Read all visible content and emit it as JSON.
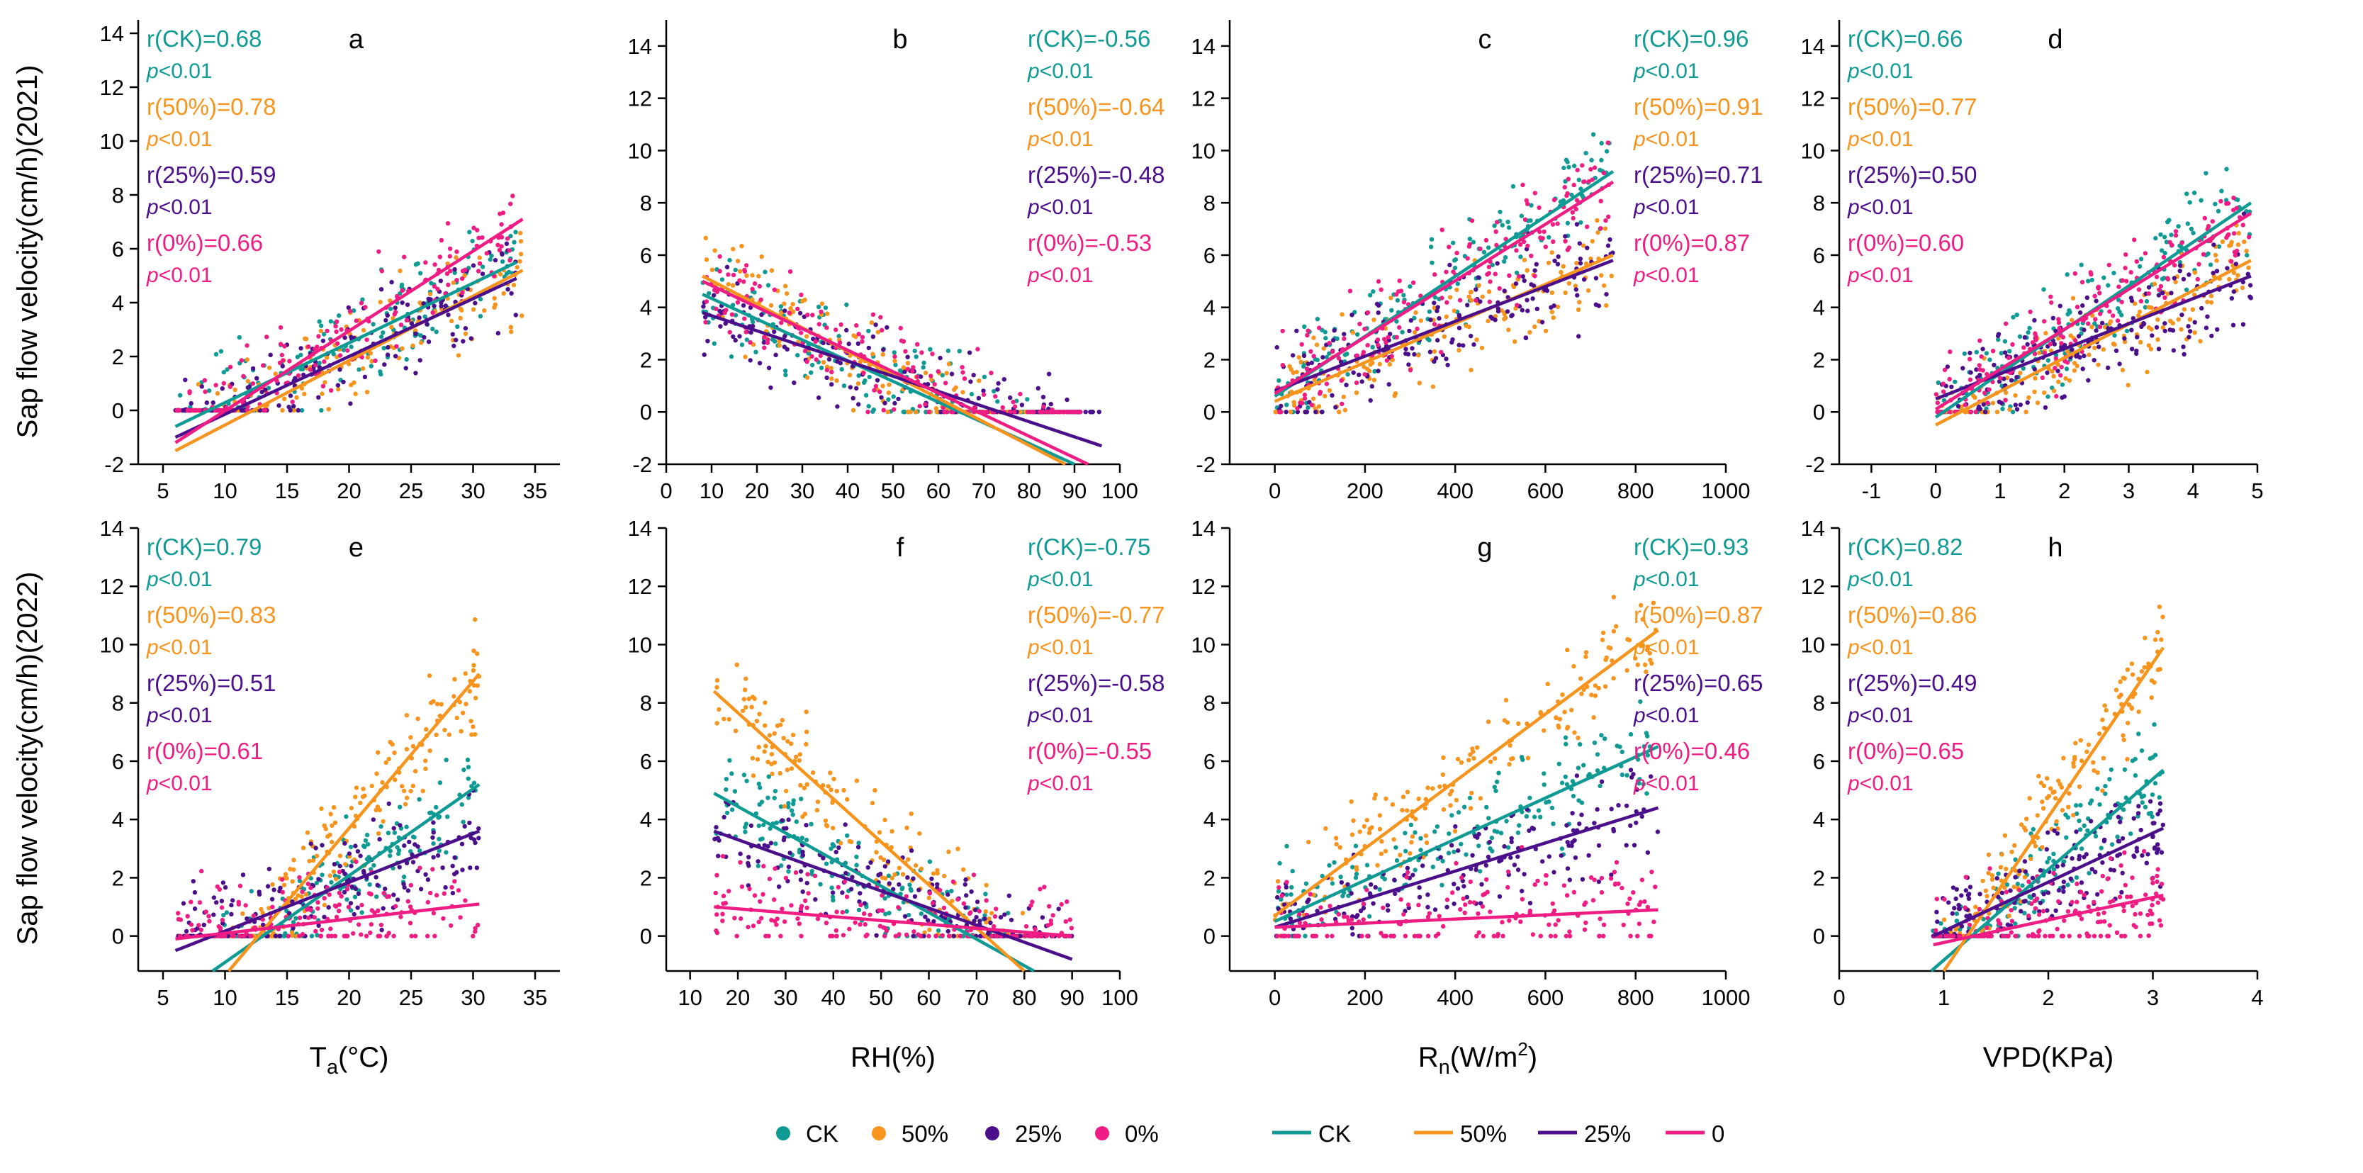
{
  "figure": {
    "ylabel_2021": "Sap flow velocity(cm/h)(2021)",
    "ylabel_2022": "Sap flow velocity(cm/h)(2022)",
    "p_text": "p<0.01",
    "legend": [
      {
        "kind": "marker",
        "label": "CK",
        "color": "#0f9a94"
      },
      {
        "kind": "marker",
        "label": "50%",
        "color": "#f7941d"
      },
      {
        "kind": "marker",
        "label": "25%",
        "color": "#4b0f8c"
      },
      {
        "kind": "marker",
        "label": "0%",
        "color": "#ef1d83"
      },
      {
        "kind": "line",
        "label": "CK",
        "color": "#0f9a94"
      },
      {
        "kind": "line",
        "label": "50%",
        "color": "#f7941d"
      },
      {
        "kind": "line",
        "label": "25%",
        "color": "#4b0f8c"
      },
      {
        "kind": "line",
        "label": "0",
        "color": "#ef1d83"
      }
    ]
  },
  "chart_data": [
    {
      "panel": "a",
      "type": "scatter",
      "xlabel": "T_a(°C)",
      "ylabel": "Sap flow velocity(cm/h)(2021)",
      "xlim": [
        3,
        37
      ],
      "ylim": [
        -2,
        14.5
      ],
      "xticks": [
        5,
        10,
        15,
        20,
        25,
        30,
        35
      ],
      "yticks": [
        -2,
        0,
        2,
        4,
        6,
        8,
        10,
        12,
        14
      ],
      "stats_side": "left",
      "series": [
        {
          "name": "CK",
          "r_label": "r(CK)=0.68",
          "fit": [
            [
              6,
              -0.6
            ],
            [
              33.5,
              5.5
            ]
          ]
        },
        {
          "name": "50%",
          "r_label": "r(50%)=0.78",
          "fit": [
            [
              6,
              -1.5
            ],
            [
              34,
              5.2
            ]
          ]
        },
        {
          "name": "25%",
          "r_label": "r(25%)=0.59",
          "fit": [
            [
              6,
              -1.0
            ],
            [
              33.5,
              4.9
            ]
          ]
        },
        {
          "name": "0%",
          "r_label": "r(0%)=0.66",
          "fit": [
            [
              6,
              -1.2
            ],
            [
              34,
              7.1
            ]
          ]
        }
      ]
    },
    {
      "panel": "b",
      "type": "scatter",
      "xlabel": "RH(%)",
      "ylabel": "",
      "xlim": [
        0,
        100
      ],
      "ylim": [
        -2,
        15
      ],
      "xticks": [
        0,
        10,
        20,
        30,
        40,
        50,
        60,
        70,
        80,
        90,
        100
      ],
      "yticks": [
        -2,
        0,
        2,
        4,
        6,
        8,
        10,
        12,
        14
      ],
      "stats_side": "right",
      "series": [
        {
          "name": "CK",
          "r_label": "r(CK)=-0.56",
          "fit": [
            [
              8,
              4.5
            ],
            [
              90,
              -2.0
            ]
          ]
        },
        {
          "name": "50%",
          "r_label": "r(50%)=-0.64",
          "fit": [
            [
              8,
              5.2
            ],
            [
              88,
              -2.0
            ]
          ]
        },
        {
          "name": "25%",
          "r_label": "r(25%)=-0.48",
          "fit": [
            [
              8,
              3.8
            ],
            [
              96,
              -1.3
            ]
          ]
        },
        {
          "name": "0%",
          "r_label": "r(0%)=-0.53",
          "fit": [
            [
              8,
              5.0
            ],
            [
              93,
              -2.0
            ]
          ]
        }
      ]
    },
    {
      "panel": "c",
      "type": "scatter",
      "xlabel": "R_n(W/m2)",
      "ylabel": "",
      "xlim": [
        -100,
        1000
      ],
      "ylim": [
        -2,
        15
      ],
      "xticks": [
        0,
        200,
        400,
        600,
        800,
        1000
      ],
      "yticks": [
        -2,
        0,
        2,
        4,
        6,
        8,
        10,
        12,
        14
      ],
      "stats_side": "right",
      "series": [
        {
          "name": "CK",
          "r_label": "r(CK)=0.96",
          "fit": [
            [
              0,
              0.6
            ],
            [
              750,
              9.2
            ]
          ]
        },
        {
          "name": "50%",
          "r_label": "r(50%)=0.91",
          "fit": [
            [
              0,
              0.4
            ],
            [
              750,
              6.0
            ]
          ]
        },
        {
          "name": "25%",
          "r_label": "r(25%)=0.71",
          "fit": [
            [
              0,
              0.8
            ],
            [
              750,
              5.8
            ]
          ]
        },
        {
          "name": "0%",
          "r_label": "r(0%)=0.87",
          "fit": [
            [
              0,
              0.7
            ],
            [
              750,
              8.8
            ]
          ]
        }
      ]
    },
    {
      "panel": "d",
      "type": "scatter",
      "xlabel": "VPD(KPa)",
      "ylabel": "",
      "xlim": [
        -1.5,
        5
      ],
      "ylim": [
        -2,
        15
      ],
      "xticks": [
        -1,
        0,
        1,
        2,
        3,
        4,
        5
      ],
      "yticks": [
        -2,
        0,
        2,
        4,
        6,
        8,
        10,
        12,
        14
      ],
      "stats_side": "left",
      "series": [
        {
          "name": "CK",
          "r_label": "r(CK)=0.66",
          "fit": [
            [
              0,
              -0.2
            ],
            [
              4.9,
              8.0
            ]
          ]
        },
        {
          "name": "50%",
          "r_label": "r(50%)=0.77",
          "fit": [
            [
              0,
              -0.5
            ],
            [
              4.9,
              5.8
            ]
          ]
        },
        {
          "name": "25%",
          "r_label": "r(25%)=0.50",
          "fit": [
            [
              0,
              0.5
            ],
            [
              4.9,
              5.2
            ]
          ]
        },
        {
          "name": "0%",
          "r_label": "r(0%)=0.60",
          "fit": [
            [
              0,
              0.1
            ],
            [
              4.9,
              7.6
            ]
          ]
        }
      ]
    },
    {
      "panel": "e",
      "type": "scatter",
      "xlabel": "T_a(°C)",
      "ylabel": "Sap flow velocity(cm/h)(2022)",
      "xlim": [
        3,
        37
      ],
      "ylim": [
        -1.2,
        14
      ],
      "xticks": [
        5,
        10,
        15,
        20,
        25,
        30,
        35
      ],
      "yticks": [
        0,
        2,
        4,
        6,
        8,
        10,
        12,
        14
      ],
      "stats_side": "left",
      "series": [
        {
          "name": "CK",
          "r_label": "r(CK)=0.79",
          "fit": [
            [
              9,
              -1.2
            ],
            [
              30.5,
              5.2
            ]
          ]
        },
        {
          "name": "50%",
          "r_label": "r(50%)=0.83",
          "fit": [
            [
              10.3,
              -1.2
            ],
            [
              30.5,
              9.0
            ]
          ]
        },
        {
          "name": "25%",
          "r_label": "r(25%)=0.51",
          "fit": [
            [
              6,
              -0.5
            ],
            [
              30.5,
              3.6
            ]
          ]
        },
        {
          "name": "0%",
          "r_label": "r(0%)=0.61",
          "fit": [
            [
              6,
              -0.1
            ],
            [
              30.5,
              1.1
            ]
          ]
        }
      ]
    },
    {
      "panel": "f",
      "type": "scatter",
      "xlabel": "RH(%)",
      "ylabel": "",
      "xlim": [
        5,
        100
      ],
      "ylim": [
        -1.2,
        14
      ],
      "xticks": [
        10,
        20,
        30,
        40,
        50,
        60,
        70,
        80,
        90,
        100
      ],
      "yticks": [
        0,
        2,
        4,
        6,
        8,
        10,
        12,
        14
      ],
      "stats_side": "right",
      "series": [
        {
          "name": "CK",
          "r_label": "r(CK)=-0.75",
          "fit": [
            [
              15,
              4.9
            ],
            [
              82,
              -1.2
            ]
          ]
        },
        {
          "name": "50%",
          "r_label": "r(50%)=-0.77",
          "fit": [
            [
              15,
              8.4
            ],
            [
              80,
              -1.2
            ]
          ]
        },
        {
          "name": "25%",
          "r_label": "r(25%)=-0.58",
          "fit": [
            [
              15,
              3.6
            ],
            [
              90,
              -0.8
            ]
          ]
        },
        {
          "name": "0%",
          "r_label": "r(0%)=-0.55",
          "fit": [
            [
              15,
              1.0
            ],
            [
              90,
              0.0
            ]
          ]
        }
      ]
    },
    {
      "panel": "g",
      "type": "scatter",
      "xlabel": "R_n(W/m2)",
      "ylabel": "",
      "xlim": [
        -100,
        1000
      ],
      "ylim": [
        -1.2,
        14
      ],
      "xticks": [
        0,
        200,
        400,
        600,
        800,
        1000
      ],
      "yticks": [
        0,
        2,
        4,
        6,
        8,
        10,
        12,
        14
      ],
      "stats_side": "right",
      "series": [
        {
          "name": "CK",
          "r_label": "r(CK)=0.93",
          "fit": [
            [
              0,
              0.5
            ],
            [
              850,
              6.5
            ]
          ]
        },
        {
          "name": "50%",
          "r_label": "r(50%)=0.87",
          "fit": [
            [
              0,
              0.7
            ],
            [
              850,
              10.5
            ]
          ]
        },
        {
          "name": "25%",
          "r_label": "r(25%)=0.65",
          "fit": [
            [
              0,
              0.3
            ],
            [
              850,
              4.4
            ]
          ]
        },
        {
          "name": "0%",
          "r_label": "r(0%)=0.46",
          "fit": [
            [
              0,
              0.3
            ],
            [
              850,
              0.9
            ]
          ]
        }
      ]
    },
    {
      "panel": "h",
      "type": "scatter",
      "xlabel": "VPD(KPa)",
      "ylabel": "",
      "xlim": [
        0,
        4
      ],
      "ylim": [
        -1.2,
        14
      ],
      "xticks": [
        0,
        1,
        2,
        3,
        4
      ],
      "yticks": [
        0,
        2,
        4,
        6,
        8,
        10,
        12,
        14
      ],
      "stats_side": "left",
      "series": [
        {
          "name": "CK",
          "r_label": "r(CK)=0.82",
          "fit": [
            [
              0.88,
              -1.2
            ],
            [
              3.1,
              5.7
            ]
          ]
        },
        {
          "name": "50%",
          "r_label": "r(50%)=0.86",
          "fit": [
            [
              1.0,
              -1.2
            ],
            [
              3.1,
              9.9
            ]
          ]
        },
        {
          "name": "25%",
          "r_label": "r(25%)=0.49",
          "fit": [
            [
              0.9,
              0.0
            ],
            [
              3.1,
              3.7
            ]
          ]
        },
        {
          "name": "0%",
          "r_label": "r(0%)=0.65",
          "fit": [
            [
              0.9,
              -0.3
            ],
            [
              3.1,
              1.4
            ]
          ]
        }
      ]
    }
  ]
}
